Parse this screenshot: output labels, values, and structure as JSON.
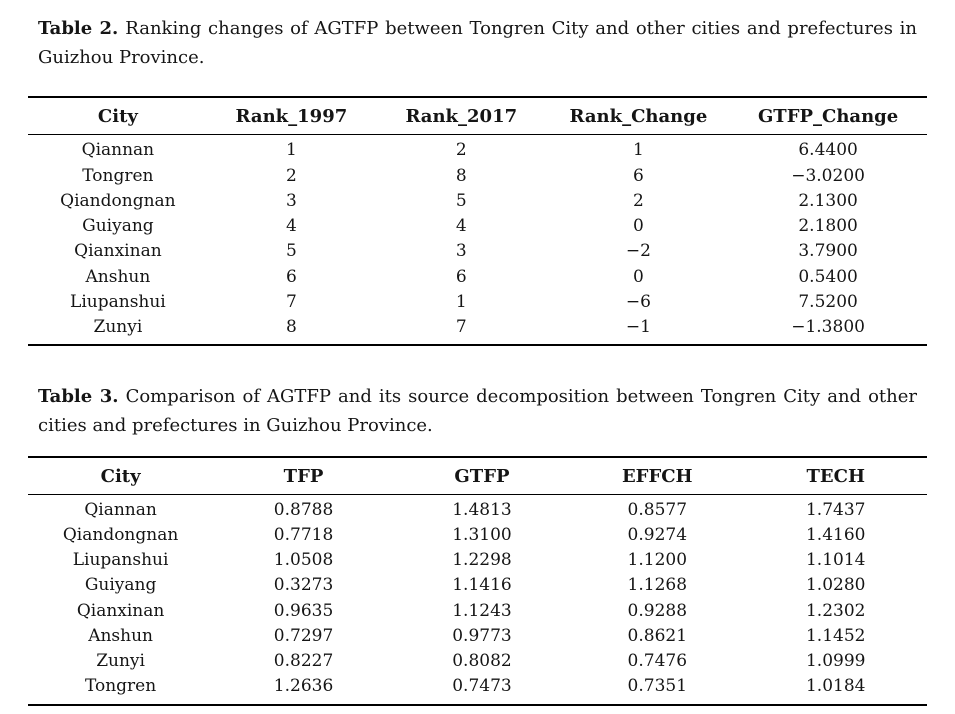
{
  "page": {
    "background_color": "#ffffff",
    "text_color": "#151515",
    "rule_color": "#000000"
  },
  "tables": [
    {
      "caption_label": "Table 2.",
      "caption_text": "Ranking changes of AGTFP between Tongren City and other cities and prefectures in Guizhou Province.",
      "columns": [
        "City",
        "Rank_1997",
        "Rank_2017",
        "Rank_Change",
        "GTFP_Change"
      ],
      "rows": [
        [
          "Qiannan",
          "1",
          "2",
          "1",
          "6.4400"
        ],
        [
          "Tongren",
          "2",
          "8",
          "6",
          "−3.0200"
        ],
        [
          "Qiandongnan",
          "3",
          "5",
          "2",
          "2.1300"
        ],
        [
          "Guiyang",
          "4",
          "4",
          "0",
          "2.1800"
        ],
        [
          "Qianxinan",
          "5",
          "3",
          "−2",
          "3.7900"
        ],
        [
          "Anshun",
          "6",
          "6",
          "0",
          "0.5400"
        ],
        [
          "Liupanshui",
          "7",
          "1",
          "−6",
          "7.5200"
        ],
        [
          "Zunyi",
          "8",
          "7",
          "−1",
          "−1.3800"
        ]
      ]
    },
    {
      "caption_label": "Table 3.",
      "caption_text": "Comparison of AGTFP and its source decomposition between Tongren City and other cities and prefectures in Guizhou Province.",
      "columns": [
        "City",
        "TFP",
        "GTFP",
        "EFFCH",
        "TECH"
      ],
      "rows": [
        [
          "Qiannan",
          "0.8788",
          "1.4813",
          "0.8577",
          "1.7437"
        ],
        [
          "Qiandongnan",
          "0.7718",
          "1.3100",
          "0.9274",
          "1.4160"
        ],
        [
          "Liupanshui",
          "1.0508",
          "1.2298",
          "1.1200",
          "1.1014"
        ],
        [
          "Guiyang",
          "0.3273",
          "1.1416",
          "1.1268",
          "1.0280"
        ],
        [
          "Qianxinan",
          "0.9635",
          "1.1243",
          "0.9288",
          "1.2302"
        ],
        [
          "Anshun",
          "0.7297",
          "0.9773",
          "0.8621",
          "1.1452"
        ],
        [
          "Zunyi",
          "0.8227",
          "0.8082",
          "0.7476",
          "1.0999"
        ],
        [
          "Tongren",
          "1.2636",
          "0.7473",
          "0.7351",
          "1.0184"
        ]
      ]
    }
  ]
}
